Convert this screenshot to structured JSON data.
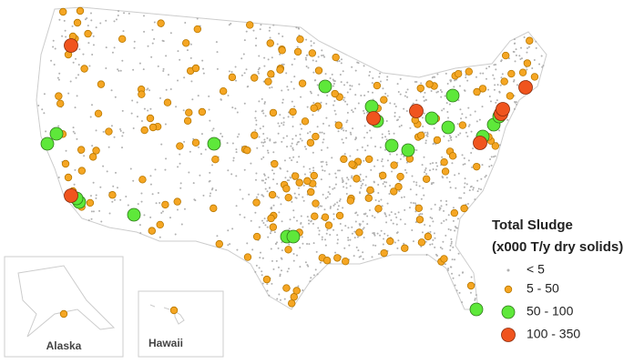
{
  "map": {
    "legend": {
      "title": "Total Sludge",
      "subtitle": "(x000 T/y dry solids)",
      "items": [
        "< 5",
        "5 - 50",
        "50 - 100",
        "100 - 350"
      ]
    },
    "insets": [
      "Alaska",
      "Hawaii"
    ]
  }
}
